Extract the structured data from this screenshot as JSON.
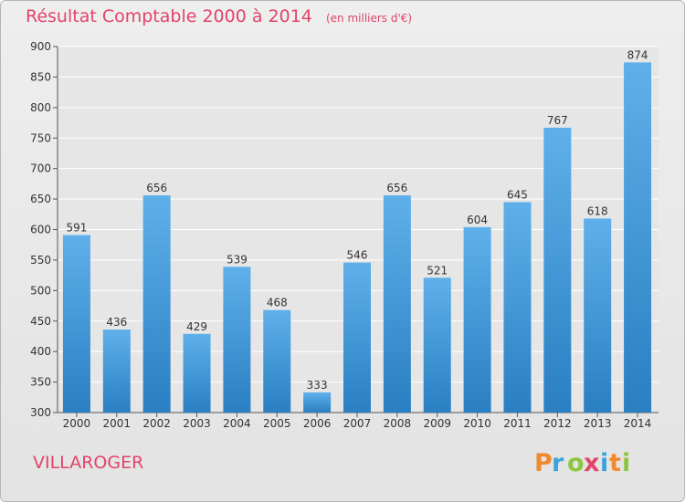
{
  "title": "Résultat Comptable 2000 à 2014",
  "subtitle": "(en milliers d'€)",
  "commune": "VILLAROGER",
  "logo_text": "Proxiti",
  "colors": {
    "title": "#e2446a",
    "bar_top": "#5fb0ea",
    "bar_bottom": "#2a7fc2",
    "grid": "#ffffff",
    "background": "#e8e8e8"
  },
  "chart_data": {
    "type": "bar",
    "categories": [
      "2000",
      "2001",
      "2002",
      "2003",
      "2004",
      "2005",
      "2006",
      "2007",
      "2008",
      "2009",
      "2010",
      "2011",
      "2012",
      "2013",
      "2014"
    ],
    "values": [
      591,
      436,
      656,
      429,
      539,
      468,
      333,
      546,
      656,
      521,
      604,
      645,
      767,
      618,
      874
    ],
    "ylim": [
      300,
      900
    ],
    "yticks": [
      300,
      350,
      400,
      450,
      500,
      550,
      600,
      650,
      700,
      750,
      800,
      850,
      900
    ],
    "grid": true,
    "data_labels": true
  }
}
